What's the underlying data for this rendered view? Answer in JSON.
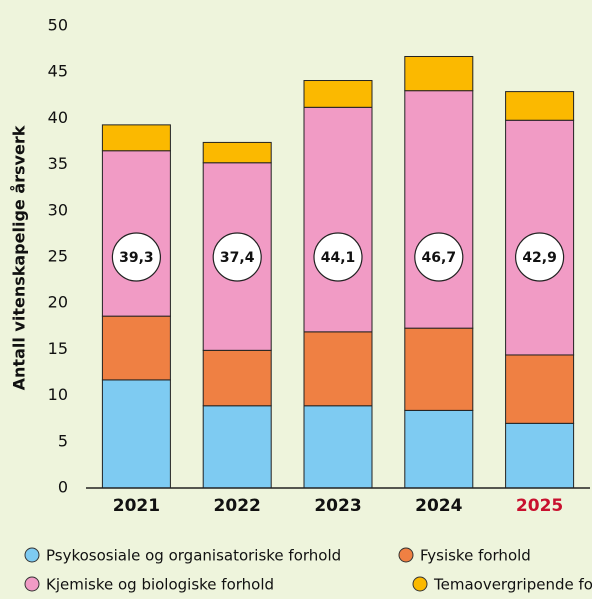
{
  "chart_data": {
    "type": "stacked_bar",
    "y_label": "Antall vitenskapelige årsverk",
    "categories": [
      "2021",
      "2022",
      "2023",
      "2024",
      "2025"
    ],
    "category_label_colors": [
      "#111111",
      "#111111",
      "#111111",
      "#111111",
      "#c8102e"
    ],
    "series": [
      {
        "name": "Psykososiale og organisatoriske forhold",
        "color": "#7ecbf2",
        "values": [
          11.7,
          8.9,
          8.9,
          8.4,
          7.0
        ]
      },
      {
        "name": "Fysiske forhold",
        "color": "#ef8043",
        "values": [
          6.9,
          6.0,
          8.0,
          8.9,
          7.4
        ]
      },
      {
        "name": "Kjemiske og biologiske forhold",
        "color": "#f19bc5",
        "values": [
          17.9,
          20.3,
          24.3,
          25.7,
          25.4
        ]
      },
      {
        "name": "Temaovergripende forhold",
        "color": "#fbb900",
        "values": [
          2.8,
          2.2,
          2.9,
          3.7,
          3.1
        ]
      }
    ],
    "totals": [
      39.3,
      37.4,
      44.1,
      46.7,
      42.9
    ],
    "total_labels": [
      "39,3",
      "37,4",
      "44,1",
      "46,7",
      "42,9"
    ],
    "ylim": [
      0,
      50
    ],
    "yticks": [
      0,
      5,
      10,
      15,
      20,
      25,
      30,
      35,
      40,
      45,
      50
    ],
    "grid": false
  }
}
